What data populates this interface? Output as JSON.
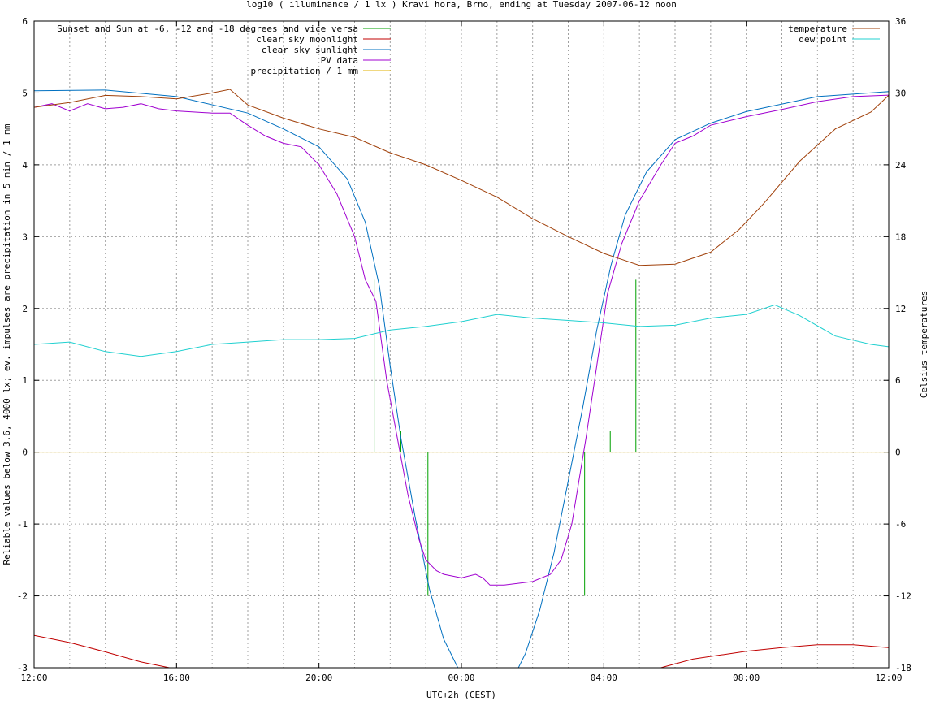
{
  "chart_data": {
    "type": "line",
    "title": "log10 ( illuminance / 1 lx ) Kravi hora, Brno, ending at Tuesday 2007-06-12 noon",
    "xlabel": "UTC+2h (CEST)",
    "ylabel": "Reliable values below 3.6, 4000 lx; ev. impulses are precipitation in 5 min / 1 mm",
    "y2label": "Celsius temperatures",
    "x_range_hours": [
      0,
      24
    ],
    "ylim": [
      -3,
      6
    ],
    "y2lim": [
      -18,
      36
    ],
    "grid": true,
    "x_ticks": [
      {
        "h": 0,
        "label": "12:00"
      },
      {
        "h": 4,
        "label": "16:00"
      },
      {
        "h": 8,
        "label": "20:00"
      },
      {
        "h": 12,
        "label": "00:00"
      },
      {
        "h": 16,
        "label": "04:00"
      },
      {
        "h": 20,
        "label": "08:00"
      },
      {
        "h": 24,
        "label": "12:00"
      }
    ],
    "y_ticks": [
      {
        "v": 6,
        "label": "6"
      },
      {
        "v": 5,
        "label": "5"
      },
      {
        "v": 4,
        "label": "4"
      },
      {
        "v": 3,
        "label": "3"
      },
      {
        "v": 2,
        "label": "2"
      },
      {
        "v": 1,
        "label": "1"
      },
      {
        "v": 0,
        "label": "0"
      },
      {
        "v": -1,
        "label": "-1"
      },
      {
        "v": -2,
        "label": "-2"
      },
      {
        "v": -3,
        "label": "-3"
      }
    ],
    "y2_ticks": [
      {
        "v": 36,
        "label": "36"
      },
      {
        "v": 30,
        "label": "30"
      },
      {
        "v": 24,
        "label": "24"
      },
      {
        "v": 18,
        "label": "18"
      },
      {
        "v": 12,
        "label": "12"
      },
      {
        "v": 6,
        "label": "6"
      },
      {
        "v": 0,
        "label": "0"
      },
      {
        "v": -6,
        "label": "-6"
      },
      {
        "v": -12,
        "label": "-12"
      },
      {
        "v": -18,
        "label": "-18"
      }
    ],
    "legend_left": [
      {
        "label": "Sunset and Sun at -6, -12 and -18 degrees and vice versa",
        "color": "#00a000"
      },
      {
        "label": "clear sky moonlight",
        "color": "#c00000"
      },
      {
        "label": "clear sky sunlight",
        "color": "#0070c0"
      },
      {
        "label": "PV data",
        "color": "#a000d0"
      },
      {
        "label": "precipitation / 1 mm",
        "color": "#e0b000"
      }
    ],
    "legend_right": [
      {
        "label": "temperature",
        "color": "#a0400a"
      },
      {
        "label": "dew point",
        "color": "#20d0d0"
      }
    ],
    "series": [
      {
        "name": "clear sky sunlight",
        "axis": "y",
        "color": "#0070c0",
        "points": [
          [
            0,
            5.03
          ],
          [
            2,
            5.04
          ],
          [
            4,
            4.95
          ],
          [
            6,
            4.72
          ],
          [
            7,
            4.5
          ],
          [
            8,
            4.25
          ],
          [
            8.8,
            3.8
          ],
          [
            9.3,
            3.2
          ],
          [
            9.7,
            2.3
          ],
          [
            10,
            1.2
          ],
          [
            10.3,
            0.2
          ],
          [
            10.7,
            -0.9
          ],
          [
            11.1,
            -1.9
          ],
          [
            11.5,
            -2.6
          ],
          [
            11.9,
            -3.0
          ],
          [
            12,
            -3.1
          ],
          [
            13.5,
            -3.1
          ],
          [
            13.8,
            -2.8
          ],
          [
            14.2,
            -2.2
          ],
          [
            14.6,
            -1.4
          ],
          [
            15,
            -0.4
          ],
          [
            15.4,
            0.6
          ],
          [
            15.8,
            1.7
          ],
          [
            16.2,
            2.6
          ],
          [
            16.6,
            3.3
          ],
          [
            17.2,
            3.9
          ],
          [
            18,
            4.35
          ],
          [
            19,
            4.58
          ],
          [
            20,
            4.74
          ],
          [
            22,
            4.95
          ],
          [
            24,
            5.02
          ]
        ]
      },
      {
        "name": "clear sky moonlight",
        "axis": "y",
        "color": "#c00000",
        "points": [
          [
            0,
            -2.55
          ],
          [
            1,
            -2.65
          ],
          [
            2,
            -2.78
          ],
          [
            3,
            -2.92
          ],
          [
            3.8,
            -3.0
          ],
          [
            17.6,
            -3.0
          ],
          [
            18.5,
            -2.88
          ],
          [
            20,
            -2.77
          ],
          [
            21,
            -2.72
          ],
          [
            22,
            -2.68
          ],
          [
            23,
            -2.68
          ],
          [
            24,
            -2.72
          ]
        ]
      },
      {
        "name": "PV data",
        "axis": "y",
        "color": "#a000d0",
        "points": [
          [
            0,
            4.8
          ],
          [
            0.5,
            4.85
          ],
          [
            1,
            4.75
          ],
          [
            1.5,
            4.85
          ],
          [
            2,
            4.78
          ],
          [
            2.5,
            4.8
          ],
          [
            3,
            4.85
          ],
          [
            3.5,
            4.78
          ],
          [
            4,
            4.75
          ],
          [
            5,
            4.72
          ],
          [
            5.5,
            4.72
          ],
          [
            6,
            4.55
          ],
          [
            6.5,
            4.4
          ],
          [
            7,
            4.3
          ],
          [
            7.5,
            4.25
          ],
          [
            8,
            4.0
          ],
          [
            8.5,
            3.6
          ],
          [
            9,
            3.0
          ],
          [
            9.3,
            2.4
          ],
          [
            9.6,
            2.1
          ],
          [
            9.9,
            1.0
          ],
          [
            10.2,
            0.2
          ],
          [
            10.5,
            -0.6
          ],
          [
            10.8,
            -1.2
          ],
          [
            11,
            -1.5
          ],
          [
            11.3,
            -1.65
          ],
          [
            11.5,
            -1.7
          ],
          [
            12,
            -1.75
          ],
          [
            12.4,
            -1.7
          ],
          [
            12.6,
            -1.75
          ],
          [
            12.8,
            -1.85
          ],
          [
            13.2,
            -1.85
          ],
          [
            14,
            -1.8
          ],
          [
            14.5,
            -1.7
          ],
          [
            14.8,
            -1.5
          ],
          [
            15.1,
            -1.0
          ],
          [
            15.5,
            0.2
          ],
          [
            15.8,
            1.2
          ],
          [
            16.1,
            2.2
          ],
          [
            16.5,
            2.9
          ],
          [
            17,
            3.5
          ],
          [
            17.6,
            4.0
          ],
          [
            18,
            4.3
          ],
          [
            18.5,
            4.4
          ],
          [
            19,
            4.55
          ],
          [
            20,
            4.67
          ],
          [
            21,
            4.77
          ],
          [
            22,
            4.88
          ],
          [
            23,
            4.95
          ],
          [
            24,
            4.97
          ]
        ]
      },
      {
        "name": "temperature",
        "axis": "y2",
        "color": "#a0400a",
        "points": [
          [
            0,
            28.8
          ],
          [
            1,
            29.2
          ],
          [
            2,
            29.8
          ],
          [
            3,
            29.7
          ],
          [
            4,
            29.5
          ],
          [
            5,
            30.0
          ],
          [
            5.5,
            30.3
          ],
          [
            6,
            29.0
          ],
          [
            7,
            27.9
          ],
          [
            8,
            27.0
          ],
          [
            9,
            26.3
          ],
          [
            10,
            25.0
          ],
          [
            11,
            24.0
          ],
          [
            12,
            22.7
          ],
          [
            13,
            21.3
          ],
          [
            14,
            19.5
          ],
          [
            15,
            18.0
          ],
          [
            16,
            16.6
          ],
          [
            17,
            15.6
          ],
          [
            18,
            15.7
          ],
          [
            19,
            16.7
          ],
          [
            19.8,
            18.6
          ],
          [
            20.5,
            20.8
          ],
          [
            21.5,
            24.3
          ],
          [
            22.5,
            27.0
          ],
          [
            23.5,
            28.4
          ],
          [
            24,
            29.8
          ]
        ]
      },
      {
        "name": "dew point",
        "axis": "y2",
        "color": "#20d0d0",
        "points": [
          [
            0,
            9.0
          ],
          [
            1,
            9.2
          ],
          [
            2,
            8.4
          ],
          [
            3,
            8.0
          ],
          [
            4,
            8.4
          ],
          [
            5,
            9.0
          ],
          [
            6,
            9.2
          ],
          [
            7,
            9.4
          ],
          [
            8,
            9.4
          ],
          [
            9,
            9.5
          ],
          [
            10,
            10.2
          ],
          [
            11,
            10.5
          ],
          [
            12,
            10.9
          ],
          [
            13,
            11.5
          ],
          [
            14,
            11.2
          ],
          [
            15,
            11.0
          ],
          [
            16,
            10.8
          ],
          [
            17,
            10.5
          ],
          [
            18,
            10.6
          ],
          [
            19,
            11.2
          ],
          [
            20,
            11.5
          ],
          [
            20.8,
            12.3
          ],
          [
            21.5,
            11.4
          ],
          [
            22.5,
            9.7
          ],
          [
            23.5,
            9.0
          ],
          [
            24,
            8.8
          ]
        ]
      }
    ],
    "precipitation": {
      "name": "precipitation / 1 mm",
      "axis": "y",
      "value": 0,
      "color": "#e0b000"
    },
    "sun_markers": {
      "name": "Sunset and Sun at -6, -12 and -18 degrees and vice versa",
      "color": "#00a000",
      "impulses": [
        [
          9.55,
          2.4
        ],
        [
          10.3,
          0.3
        ],
        [
          11.06,
          -2.0
        ],
        [
          15.46,
          -2.0
        ],
        [
          16.18,
          0.3
        ],
        [
          16.9,
          2.4
        ]
      ]
    }
  }
}
